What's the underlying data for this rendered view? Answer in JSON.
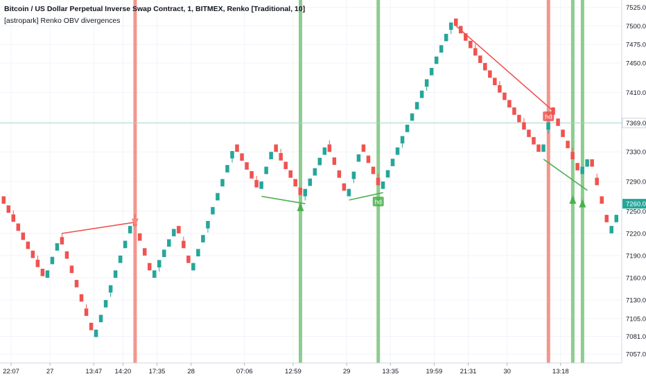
{
  "header": {
    "title": "Bitcoin / US Dollar Perpetual Inverse Swap Contract, 1, BITMEX, Renko [Traditional, 10]",
    "indicator": "[astropark] Renko OBV divergences"
  },
  "colors": {
    "up": "#26a69a",
    "down": "#ef5350",
    "bear_line": "#ef5350",
    "bull_line": "#4caf50",
    "bear_band": "#f28b82",
    "bull_band": "#81c784",
    "grid": "#f0f3fa",
    "axis_text": "#131722",
    "current_price_line": "#a5d6c8"
  },
  "chart_data": {
    "type": "renko",
    "box_size": 10,
    "price_axis": {
      "range": [
        7045,
        7535
      ],
      "ticks": [
        7525.0,
        7500.0,
        7475.0,
        7450.0,
        7410.0,
        7369.0,
        7330.0,
        7290.0,
        7250.0,
        7220.0,
        7190.0,
        7160.0,
        7130.0,
        7105.0,
        7081.0,
        7057.0
      ],
      "tick_labels": [
        "7525.0",
        "7500.0",
        "7475.0",
        "7450.0",
        "7410.0",
        "7369.0",
        "7330.0",
        "7290.0",
        "7250.0",
        "7220.0",
        "7190.0",
        "7160.0",
        "7130.0",
        "7105.0",
        "7081.0",
        "7057.0"
      ],
      "markers": [
        {
          "label": "7369.0",
          "value": 7369.0,
          "color": "#ffffff",
          "text_color": "#131722",
          "border": "#d1d4dc"
        },
        {
          "label": "7260.0",
          "value": 7260.0,
          "color": "#26a69a",
          "text_color": "#ffffff"
        }
      ]
    },
    "time_axis": {
      "labels": [
        "22:07",
        "27",
        "13:47",
        "14:20",
        "17:35",
        "28",
        "07:06",
        "12:59",
        "29",
        "13:35",
        "19:59",
        "21:31",
        "30",
        "13:18"
      ],
      "brick_positions": [
        2,
        10,
        19,
        25,
        32,
        39,
        50,
        60,
        71,
        80,
        89,
        96,
        104,
        115
      ]
    },
    "bricks_count": 127,
    "pivots": [
      [
        0,
        7270
      ],
      [
        9,
        7160
      ],
      [
        12,
        7215
      ],
      [
        19,
        7080
      ],
      [
        27,
        7240
      ],
      [
        31,
        7160
      ],
      [
        36,
        7230
      ],
      [
        39,
        7170
      ],
      [
        48,
        7340
      ],
      [
        53,
        7280
      ],
      [
        56,
        7340
      ],
      [
        62,
        7270
      ],
      [
        67,
        7340
      ],
      [
        71,
        7270
      ],
      [
        74,
        7340
      ],
      [
        78,
        7280
      ],
      [
        93,
        7510
      ],
      [
        111,
        7330
      ],
      [
        113,
        7390
      ],
      [
        119,
        7300
      ],
      [
        121,
        7320
      ],
      [
        125,
        7220
      ],
      [
        127,
        7250
      ]
    ],
    "current_price": 7369.0,
    "last_price": 7260.0,
    "divergences": [
      {
        "kind": "bearish",
        "from": [
          12,
          7220
        ],
        "to": [
          27,
          7235
        ]
      },
      {
        "kind": "bullish",
        "from": [
          53,
          7270
        ],
        "to": [
          62,
          7260
        ]
      },
      {
        "kind": "bullish",
        "from": [
          71,
          7265
        ],
        "to": [
          78,
          7275
        ]
      },
      {
        "kind": "bearish",
        "from": [
          93,
          7500
        ],
        "to": [
          113,
          7385
        ]
      },
      {
        "kind": "bullish",
        "from": [
          111,
          7320
        ],
        "to": [
          120,
          7278
        ]
      }
    ],
    "signal_bands": [
      {
        "kind": "bearish",
        "index": 27
      },
      {
        "kind": "bullish",
        "index": 61
      },
      {
        "kind": "bullish",
        "index": 77
      },
      {
        "kind": "bearish",
        "index": 112
      },
      {
        "kind": "bullish",
        "index": 117
      },
      {
        "kind": "bullish",
        "index": 119
      }
    ],
    "signal_markers": [
      {
        "kind": "sell_arrow",
        "index": 27,
        "price": 7240
      },
      {
        "kind": "buy_arrow",
        "index": 61,
        "price": 7250
      },
      {
        "kind": "hd_label",
        "index": 77,
        "price": 7263,
        "text": "hd",
        "color": "#4caf50"
      },
      {
        "kind": "hd_label",
        "index": 112,
        "price": 7378,
        "text": "hd",
        "color": "#ef5350"
      },
      {
        "kind": "buy_arrow",
        "index": 117,
        "price": 7260
      },
      {
        "kind": "buy_arrow",
        "index": 119,
        "price": 7255
      }
    ]
  }
}
